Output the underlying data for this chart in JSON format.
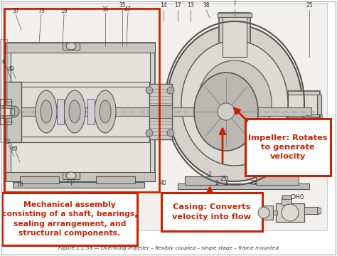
{
  "background_color": "#ffffff",
  "red_color": "#cc2200",
  "dark_gray": "#333333",
  "line_gray": "#555555",
  "fill_light": "#e8e6e0",
  "fill_mid": "#d0cdc8",
  "fill_dark": "#b8b5b0",
  "title": "Figure 1.1.5a — Overhung impeller – flexibly coupled – single stage – frame mounted",
  "box1_text": "Mechanical assembly\nconsisting of a shaft, bearings,\nsealing arrangement, and\nstructural components.",
  "box2_text": "Casing: Converts\nvelocity into flow",
  "box3_text": "Impeller: Rotates\nto generate\nvelocity",
  "oh0_label": "OH0",
  "fig_width": 4.74,
  "fig_height": 3.6,
  "dpi": 100
}
